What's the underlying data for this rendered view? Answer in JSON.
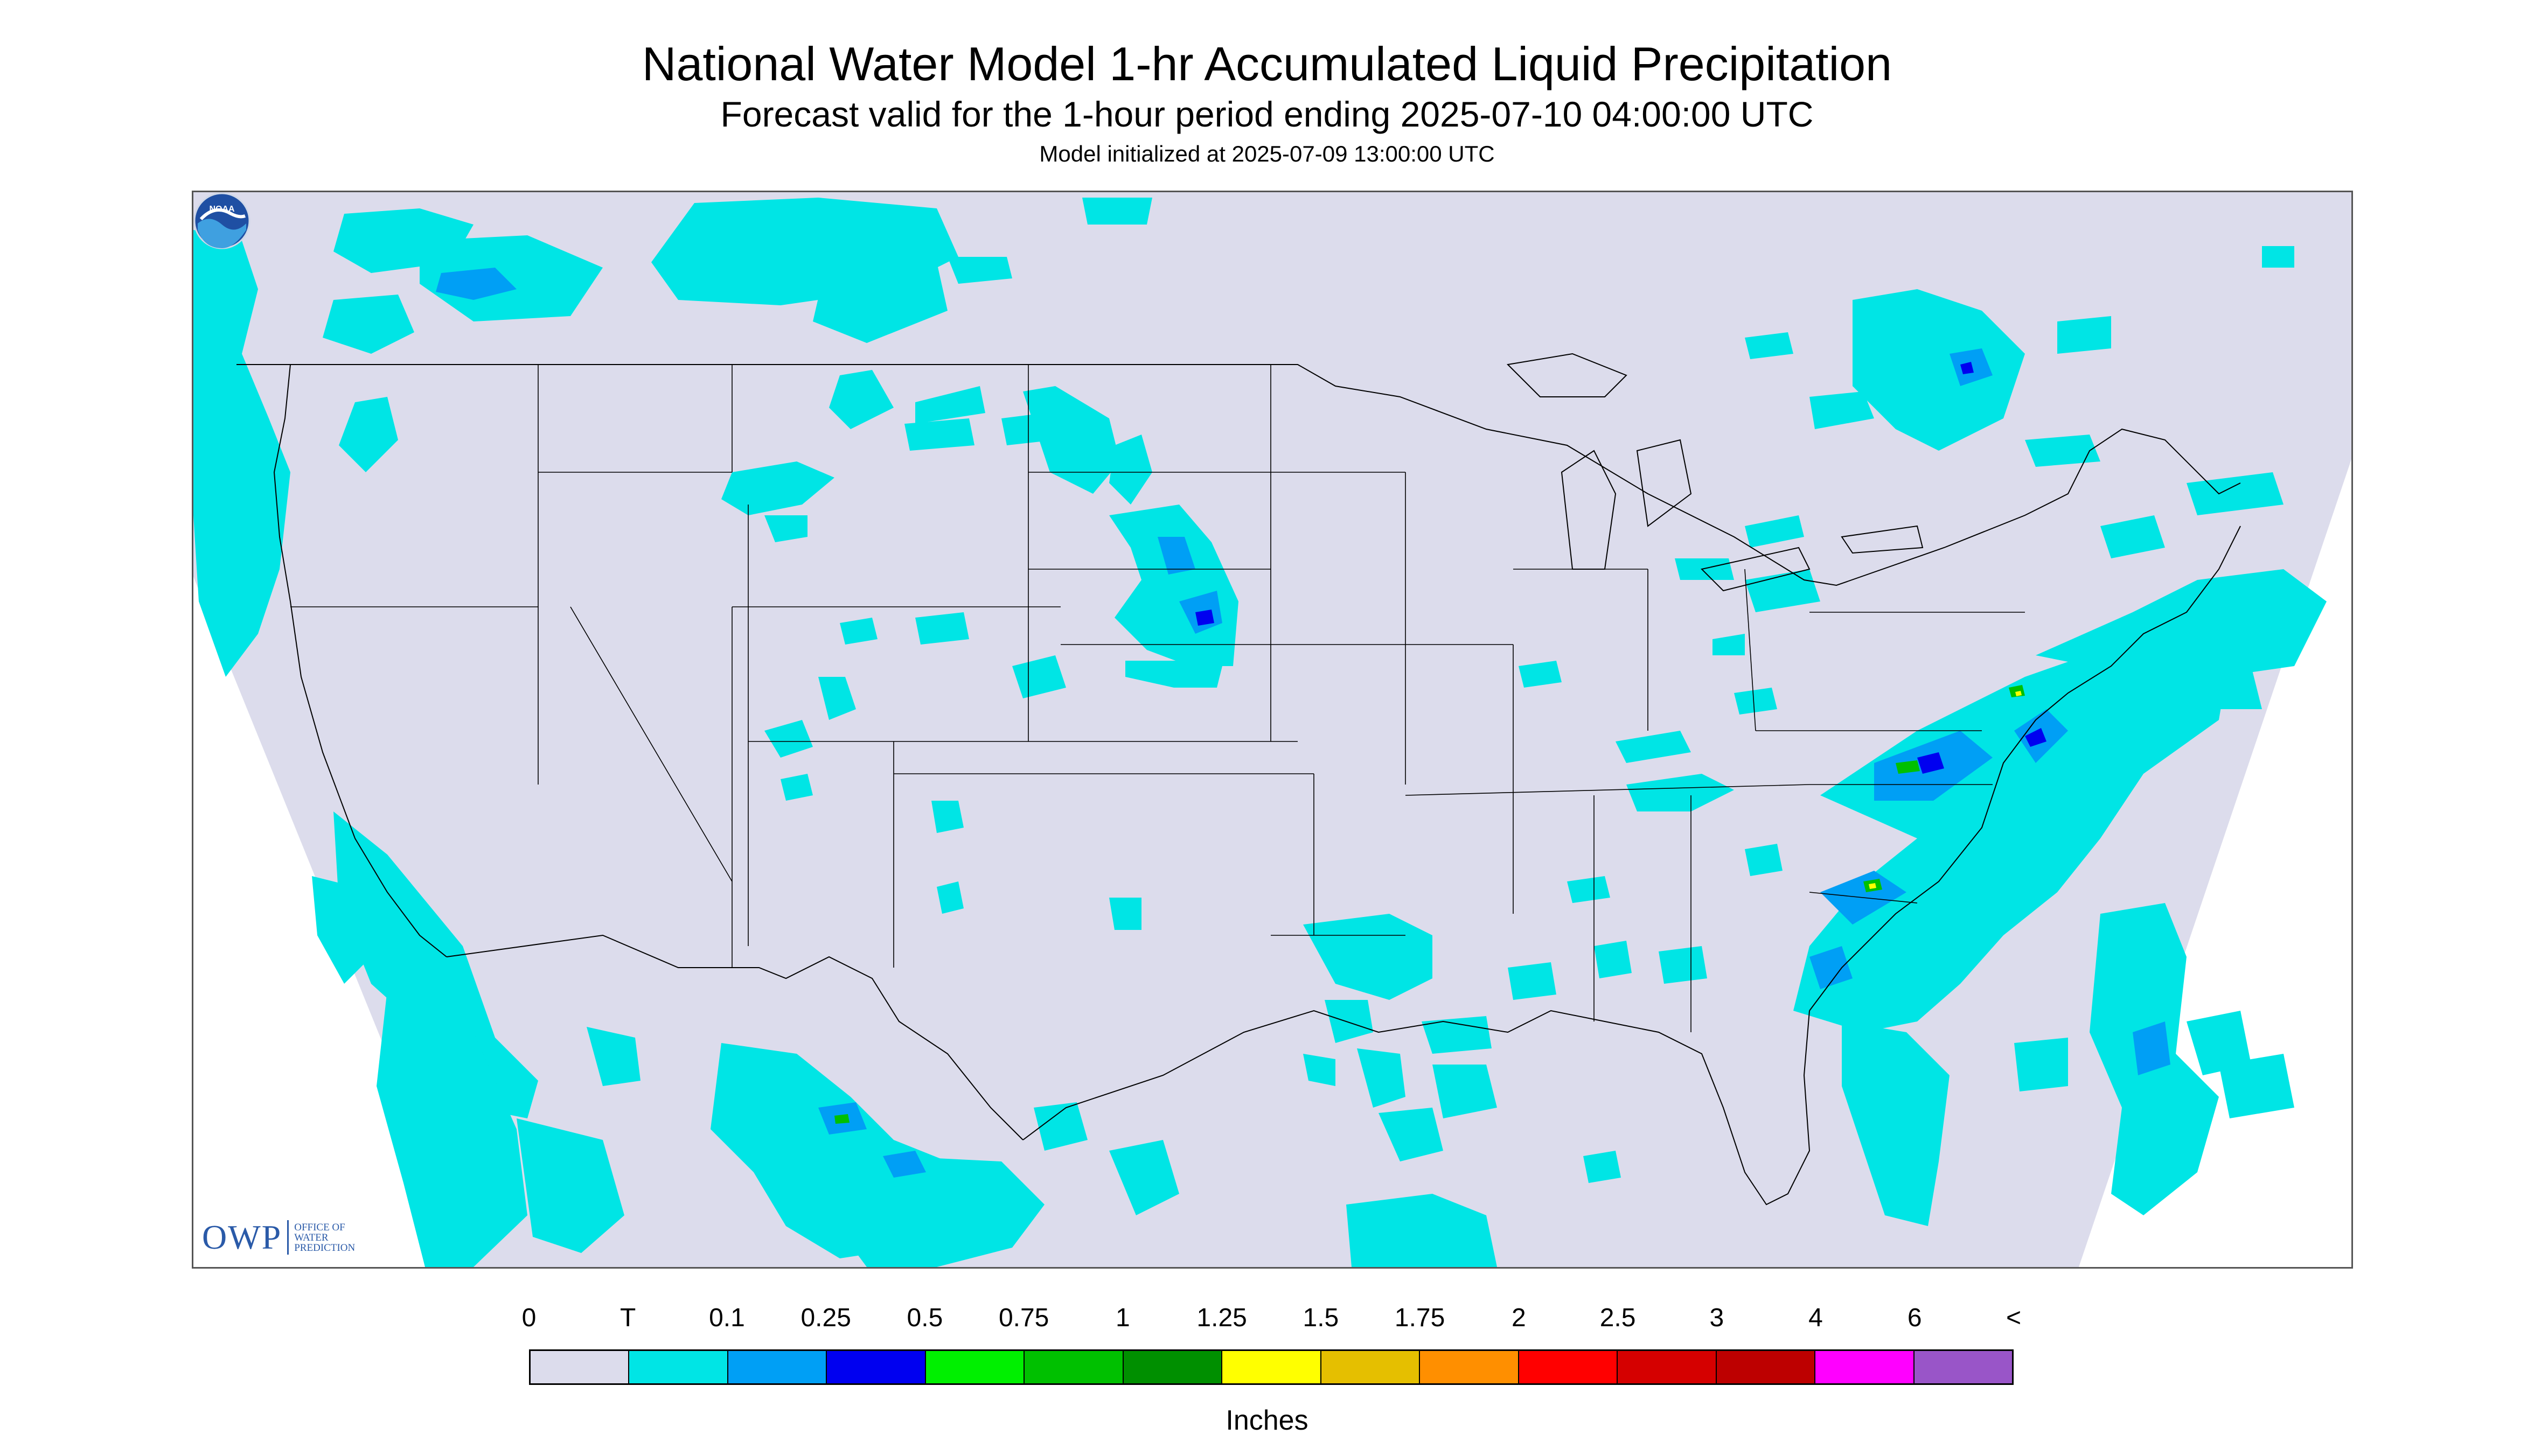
{
  "header": {
    "title": "National Water Model 1-hr Accumulated Liquid Precipitation",
    "subtitle": "Forecast valid for the 1-hour period ending 2025-07-10 04:00:00 UTC",
    "init": "Model initialized at 2025-07-09 13:00:00 UTC"
  },
  "map": {
    "projection": "Lambert conformal conic (CONUS)",
    "background_color": "#dcdcec",
    "outside_color": "#ffffff",
    "boundary_color": "#000000"
  },
  "logos": {
    "owp_mark": "OWP",
    "owp_text_lines": [
      "OFFICE OF",
      "WATER",
      "PREDICTION"
    ],
    "noaa_text": "NOAA"
  },
  "legend": {
    "ticks": [
      "0",
      "T",
      "0.1",
      "0.25",
      "0.5",
      "0.75",
      "1",
      "1.25",
      "1.5",
      "1.75",
      "2",
      "2.5",
      "3",
      "4",
      "6",
      "<"
    ],
    "colors": [
      "#dcdcec",
      "#00e5e5",
      "#009ff5",
      "#0000f0",
      "#00f000",
      "#00c000",
      "#008f00",
      "#ffff00",
      "#e5bf00",
      "#ff8f00",
      "#ff0000",
      "#d50000",
      "#bd0000",
      "#ff00ff",
      "#9955c8"
    ],
    "units": "Inches"
  },
  "colors": {
    "trace": "#00e5e5",
    "light": "#009ff5",
    "moderate": "#0000f0",
    "green": "#00c000",
    "yellow": "#ffff00"
  }
}
